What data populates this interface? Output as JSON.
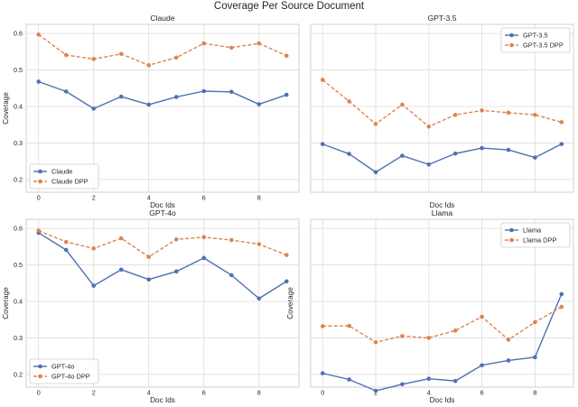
{
  "figure": {
    "suptitle": "Coverage Per Source Document"
  },
  "colors": {
    "base": "#4c72b0",
    "dpp": "#dd8452",
    "grid": "#dddddd",
    "frame": "#cccccc"
  },
  "chart_data": [
    {
      "type": "line",
      "title": "Claude",
      "xlabel": "Doc Ids",
      "ylabel": "Coverage",
      "x": [
        0,
        1,
        2,
        3,
        4,
        5,
        6,
        7,
        8,
        9
      ],
      "xticks": [
        "0",
        "2",
        "4",
        "6",
        "8"
      ],
      "xlim": [
        -0.45,
        9.45
      ],
      "ylim": [
        0.165,
        0.625
      ],
      "yticks": [
        "0.2",
        "0.3",
        "0.4",
        "0.5",
        "0.6"
      ],
      "grid": true,
      "legend": "lower-left",
      "series": [
        {
          "name": "Claude",
          "style": "solid",
          "values": [
            0.468,
            0.441,
            0.394,
            0.427,
            0.405,
            0.426,
            0.442,
            0.44,
            0.406,
            0.432
          ]
        },
        {
          "name": "Claude DPP",
          "style": "dashed",
          "values": [
            0.597,
            0.541,
            0.53,
            0.544,
            0.513,
            0.534,
            0.573,
            0.561,
            0.573,
            0.539
          ]
        }
      ]
    },
    {
      "type": "line",
      "title": "GPT-3.5",
      "xlabel": "Doc Ids",
      "ylabel": "",
      "x": [
        0,
        1,
        2,
        3,
        4,
        5,
        6,
        7,
        8,
        9
      ],
      "xticks": [],
      "xlim": [
        -0.45,
        9.45
      ],
      "ylim": [
        0.165,
        0.625
      ],
      "yticks": [],
      "grid": true,
      "legend": "top-right",
      "series": [
        {
          "name": "GPT-3.5",
          "style": "solid",
          "values": [
            0.297,
            0.27,
            0.22,
            0.265,
            0.241,
            0.271,
            0.286,
            0.281,
            0.26,
            0.297
          ]
        },
        {
          "name": "GPT-3.5 DPP",
          "style": "dashed",
          "values": [
            0.473,
            0.414,
            0.352,
            0.405,
            0.345,
            0.377,
            0.389,
            0.383,
            0.377,
            0.357
          ]
        }
      ]
    },
    {
      "type": "line",
      "title": "GPT-4o",
      "xlabel": "Doc Ids",
      "ylabel": "Coverage",
      "x": [
        0,
        1,
        2,
        3,
        4,
        5,
        6,
        7,
        8,
        9
      ],
      "xticks": [
        "0",
        "2",
        "4",
        "6",
        "8"
      ],
      "xlim": [
        -0.45,
        9.45
      ],
      "ylim": [
        0.165,
        0.625
      ],
      "yticks": [
        "0.2",
        "0.3",
        "0.4",
        "0.5",
        "0.6"
      ],
      "grid": true,
      "legend": "lower-left",
      "series": [
        {
          "name": "GPT-4o",
          "style": "solid",
          "values": [
            0.588,
            0.541,
            0.443,
            0.487,
            0.46,
            0.482,
            0.519,
            0.472,
            0.408,
            0.455
          ]
        },
        {
          "name": "GPT-4o DPP",
          "style": "dashed",
          "values": [
            0.594,
            0.563,
            0.545,
            0.573,
            0.522,
            0.57,
            0.576,
            0.568,
            0.557,
            0.527
          ]
        }
      ]
    },
    {
      "type": "line",
      "title": "Llama",
      "xlabel": "Doc Ids",
      "ylabel": "Coverage",
      "x": [
        0,
        1,
        2,
        3,
        4,
        5,
        6,
        7,
        8,
        9
      ],
      "xticks": [
        "0",
        "2",
        "4",
        "6",
        "8"
      ],
      "xlim": [
        -0.45,
        9.45
      ],
      "ylim": [
        0.165,
        0.625
      ],
      "yticks": [],
      "grid": true,
      "legend": "top-right",
      "series": [
        {
          "name": "Llama",
          "style": "solid",
          "values": [
            0.203,
            0.186,
            0.155,
            0.173,
            0.188,
            0.182,
            0.225,
            0.238,
            0.247,
            0.42
          ]
        },
        {
          "name": "Llama DPP",
          "style": "dashed",
          "values": [
            0.332,
            0.333,
            0.288,
            0.305,
            0.3,
            0.32,
            0.358,
            0.295,
            0.343,
            0.385
          ]
        }
      ]
    }
  ]
}
